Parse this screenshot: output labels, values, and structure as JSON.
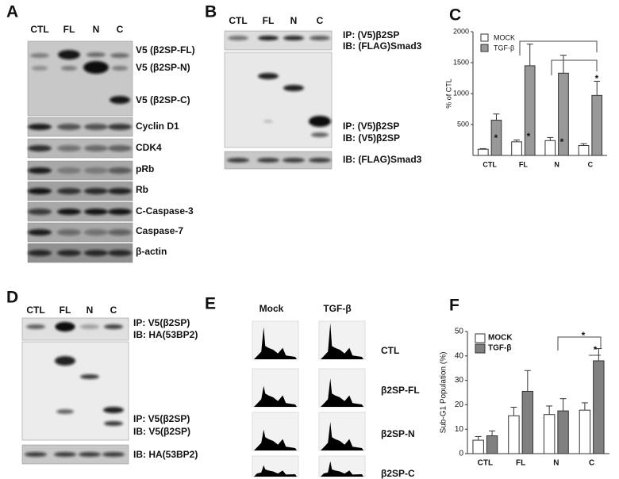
{
  "panels": {
    "A": {
      "label": "A",
      "lanes": [
        "CTL",
        "FL",
        "N",
        "C"
      ],
      "blots": [
        "V5 (β2SP-FL)",
        "V5 (β2SP-N)",
        "V5 (β2SP-C)",
        "Cyclin D1",
        "CDK4",
        "pRb",
        "Rb",
        "C-Caspase-3",
        "Caspase-7",
        "β-actin"
      ]
    },
    "B": {
      "label": "B",
      "lanes": [
        "CTL",
        "FL",
        "N",
        "C"
      ],
      "blot_labels": [
        "IP: (V5)β2SP",
        "IB: (FLAG)Smad3",
        "IP: (V5)β2SP",
        "IB: (V5)β2SP",
        "IB: (FLAG)Smad3"
      ]
    },
    "C": {
      "label": "C"
    },
    "D": {
      "label": "D",
      "lanes": [
        "CTL",
        "FL",
        "N",
        "C"
      ],
      "blot_labels": [
        "IP: V5(β2SP)",
        "IB: HA(53BP2)",
        "IP: V5(β2SP)",
        "IB: V5(β2SP)",
        "IB: HA(53BP2)"
      ]
    },
    "E": {
      "label": "E",
      "columns": [
        "Mock",
        "TGF-β"
      ],
      "rows": [
        "CTL",
        "β2SP-FL",
        "β2SP-N",
        "β2SP-C"
      ]
    },
    "F": {
      "label": "F"
    }
  },
  "chart_data": [
    {
      "type": "bar",
      "y_label": "% of CTL",
      "categories": [
        "CTL",
        "FL",
        "N",
        "C"
      ],
      "series": [
        {
          "name": "MOCK",
          "color": "#ffffff",
          "values": [
            100,
            220,
            240,
            160
          ],
          "errors": [
            10,
            30,
            50,
            30
          ]
        },
        {
          "name": "TGF-β",
          "color": "#999999",
          "values": [
            570,
            1450,
            1330,
            970
          ],
          "errors": [
            100,
            350,
            290,
            230
          ]
        }
      ],
      "ylim": [
        0,
        2000
      ],
      "yticks": [
        500,
        1000,
        1500,
        2000
      ],
      "legend": "upper left",
      "annotations": [
        "*",
        "*",
        "*",
        "*"
      ]
    },
    {
      "type": "bar",
      "y_label": "Sub-G1 Population (%)",
      "categories": [
        "CTL",
        "FL",
        "N",
        "C"
      ],
      "series": [
        {
          "name": "MOCK",
          "color": "#ffffff",
          "values": [
            5.5,
            15.5,
            16,
            17.8
          ],
          "errors": [
            1.5,
            3.5,
            3.5,
            3
          ]
        },
        {
          "name": "TGF-β",
          "color": "#808080",
          "values": [
            7.3,
            25.5,
            17.5,
            38
          ],
          "errors": [
            2,
            8.5,
            5,
            5
          ]
        }
      ],
      "ylim": [
        0,
        50
      ],
      "yticks": [
        0,
        10,
        20,
        30,
        40,
        50
      ],
      "legend": "upper left",
      "annotations": [
        "*",
        "*"
      ]
    }
  ]
}
